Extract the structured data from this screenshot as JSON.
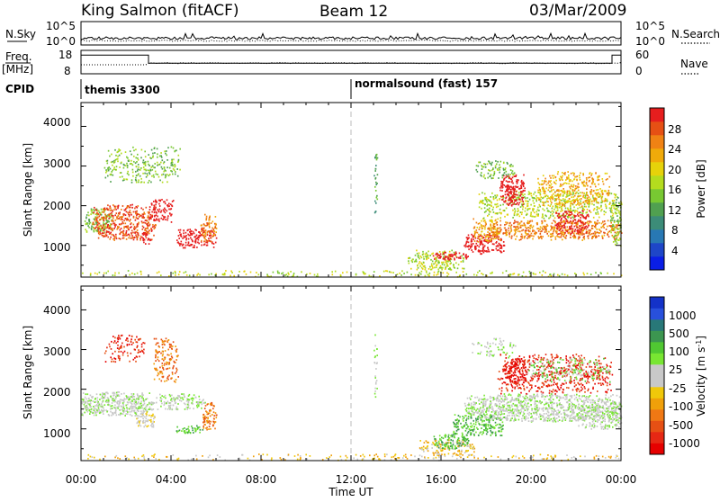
{
  "header": {
    "station": "King Salmon (fitACF)",
    "beam": "Beam 12",
    "date": "03/Mar/2009"
  },
  "summary": {
    "nsky_label": "N.Sky",
    "nsky_ticks": [
      "10^5",
      "10^0"
    ],
    "nsearch_label": "N.Search",
    "nsearch_ticks": [
      "10^5",
      "10^0"
    ],
    "freq_label": "Freq.",
    "freq_unit": "[MHz]",
    "freq_ticks": [
      "18",
      "8"
    ],
    "nave_label": "Nave",
    "nave_ticks": [
      "60",
      "0"
    ],
    "cpid_label": "CPID",
    "cpid_programs": [
      {
        "name": "themis 3300",
        "start_hour": 0
      },
      {
        "name": "normalsound (fast) 157",
        "start_hour": 12
      }
    ],
    "freq_segments": [
      {
        "start_hour": 0,
        "end_hour": 3,
        "freq_mhz": 16
      },
      {
        "start_hour": 3,
        "end_hour": 23.6,
        "freq_mhz": 12.5
      },
      {
        "start_hour": 23.6,
        "end_hour": 24,
        "freq_mhz": 16
      }
    ]
  },
  "chart_data": [
    {
      "type": "heatmap",
      "name": "power",
      "ylabel": "Slant Range [km]",
      "ylim": [
        200,
        4600
      ],
      "xlim_hours": [
        0,
        24
      ],
      "y_ticks": [
        "4000",
        "3000",
        "2000",
        "1000"
      ],
      "colorbar": {
        "label": "Power [dB]",
        "range": [
          0,
          32
        ],
        "ticks": [
          "28",
          "24",
          "20",
          "16",
          "12",
          "8",
          "4"
        ],
        "colors": [
          "#0a1ee6",
          "#1e46c8",
          "#2878b4",
          "#3c8c78",
          "#50a050",
          "#78c832",
          "#b4dc1e",
          "#e6d20a",
          "#f0aa0a",
          "#f08214",
          "#e65014",
          "#e61e1e"
        ]
      },
      "patches": [
        {
          "t0": 0.15,
          "t1": 1.4,
          "r0": 1350,
          "r1": 1950,
          "v": 5,
          "d": 0.6
        },
        {
          "t0": 0.5,
          "t1": 3.3,
          "r0": 1150,
          "r1": 2050,
          "v": 10,
          "d": 0.55
        },
        {
          "t0": 2.6,
          "t1": 3.1,
          "r0": 1050,
          "r1": 1350,
          "v": 27,
          "d": 0.6
        },
        {
          "t0": 3.0,
          "t1": 4.1,
          "r0": 1600,
          "r1": 2200,
          "v": 14,
          "d": 0.45
        },
        {
          "t0": 1.0,
          "t1": 4.4,
          "r0": 2600,
          "r1": 3500,
          "v": 5,
          "d": 0.28
        },
        {
          "t0": 4.2,
          "t1": 6.0,
          "r0": 950,
          "r1": 1450,
          "v": 12,
          "d": 0.5
        },
        {
          "t0": 5.3,
          "t1": 6.0,
          "r0": 1100,
          "r1": 1800,
          "v": 9,
          "d": 0.5
        },
        {
          "t0": 13.0,
          "t1": 13.15,
          "r0": 1700,
          "r1": 3500,
          "v": 4,
          "d": 0.35
        },
        {
          "t0": 14.5,
          "t1": 17.0,
          "r0": 400,
          "r1": 900,
          "v": 6,
          "d": 0.45
        },
        {
          "t0": 15.6,
          "t1": 17.2,
          "r0": 650,
          "r1": 850,
          "v": 13,
          "d": 0.6
        },
        {
          "t0": 17.0,
          "t1": 18.8,
          "r0": 800,
          "r1": 1300,
          "v": 22,
          "d": 0.6
        },
        {
          "t0": 17.4,
          "t1": 18.6,
          "r0": 1100,
          "r1": 1700,
          "v": 8,
          "d": 0.5
        },
        {
          "t0": 18.0,
          "t1": 24.0,
          "r0": 1150,
          "r1": 1650,
          "v": 9,
          "d": 0.6
        },
        {
          "t0": 17.6,
          "t1": 24.0,
          "r0": 1700,
          "r1": 2400,
          "v": 6,
          "d": 0.4
        },
        {
          "t0": 18.6,
          "t1": 19.7,
          "r0": 2000,
          "r1": 2800,
          "v": 18,
          "d": 0.6
        },
        {
          "t0": 18.9,
          "t1": 19.3,
          "r0": 2200,
          "r1": 2500,
          "v": 25,
          "d": 0.6
        },
        {
          "t0": 20.2,
          "t1": 23.5,
          "r0": 2000,
          "r1": 2900,
          "v": 8,
          "d": 0.4
        },
        {
          "t0": 21.0,
          "t1": 22.6,
          "r0": 1300,
          "r1": 1900,
          "v": 15,
          "d": 0.45
        },
        {
          "t0": 17.5,
          "t1": 19.3,
          "r0": 2700,
          "r1": 3150,
          "v": 5,
          "d": 0.35
        },
        {
          "t0": 0.0,
          "t1": 24.0,
          "r0": 220,
          "r1": 380,
          "v": 6,
          "d": 0.18
        },
        {
          "t0": 23.5,
          "t1": 24.0,
          "r0": 1000,
          "r1": 2300,
          "v": 5,
          "d": 0.5
        }
      ]
    },
    {
      "type": "heatmap",
      "name": "velocity",
      "ylabel": "Slant Range [km]",
      "xlabel": "Time UT",
      "ylim": [
        200,
        4600
      ],
      "xlim_hours": [
        0,
        24
      ],
      "y_ticks": [
        "4000",
        "3000",
        "2000",
        "1000"
      ],
      "x_ticks": [
        "00:00",
        "04:00",
        "08:00",
        "12:00",
        "16:00",
        "20:00",
        "00:00"
      ],
      "colorbar": {
        "label": "Velocity [m s",
        "label_sup": "-1",
        "label_end": "]",
        "ticks": [
          "1000",
          "500",
          "100",
          "25",
          "-25",
          "-100",
          "-500",
          "-1000"
        ],
        "colors": [
          "#1432c8",
          "#2850dc",
          "#287878",
          "#3c9650",
          "#50c832",
          "#78e632",
          "#c8c8c8",
          "#c8c8c8",
          "#f0c80a",
          "#f0a00a",
          "#f07814",
          "#e65014",
          "#e62814",
          "#e60000"
        ]
      },
      "patches": [
        {
          "t0": 0.0,
          "t1": 3.2,
          "r0": 1350,
          "r1": 1950,
          "v": 6,
          "d": 0.7
        },
        {
          "t0": 2.4,
          "t1": 3.3,
          "r0": 1050,
          "r1": 1450,
          "v": 7,
          "d": 0.6
        },
        {
          "t0": 3.2,
          "t1": 5.5,
          "r0": 1500,
          "r1": 1900,
          "v": 6,
          "d": 0.55
        },
        {
          "t0": 3.2,
          "t1": 4.3,
          "r0": 2200,
          "r1": 3300,
          "v": 10,
          "d": 0.4
        },
        {
          "t0": 1.0,
          "t1": 2.8,
          "r0": 2700,
          "r1": 3400,
          "v": 12,
          "d": 0.25
        },
        {
          "t0": 4.2,
          "t1": 5.4,
          "r0": 900,
          "r1": 1100,
          "v": 4,
          "d": 0.6
        },
        {
          "t0": 5.4,
          "t1": 6.0,
          "r0": 1000,
          "r1": 1700,
          "v": 10,
          "d": 0.55
        },
        {
          "t0": 0.0,
          "t1": 24.0,
          "r0": 220,
          "r1": 380,
          "v": 8,
          "d": 0.18
        },
        {
          "t0": 13.0,
          "t1": 13.15,
          "r0": 1700,
          "r1": 3500,
          "v": 6,
          "d": 0.3
        },
        {
          "t0": 15.0,
          "t1": 17.5,
          "r0": 350,
          "r1": 750,
          "v": 8,
          "d": 0.45
        },
        {
          "t0": 15.6,
          "t1": 17.2,
          "r0": 500,
          "r1": 900,
          "v": 4,
          "d": 0.55
        },
        {
          "t0": 16.5,
          "t1": 18.8,
          "r0": 850,
          "r1": 1400,
          "v": 4,
          "d": 0.55
        },
        {
          "t0": 17.0,
          "t1": 24.0,
          "r0": 1200,
          "r1": 1900,
          "v": 6,
          "d": 0.65
        },
        {
          "t0": 18.5,
          "t1": 23.6,
          "r0": 1900,
          "r1": 2900,
          "v": 12,
          "d": 0.35
        },
        {
          "t0": 18.8,
          "t1": 19.8,
          "r0": 2200,
          "r1": 2800,
          "v": 13,
          "d": 0.55
        },
        {
          "t0": 19.8,
          "t1": 23.5,
          "r0": 2200,
          "r1": 2800,
          "v": 5,
          "d": 0.3
        },
        {
          "t0": 22.0,
          "t1": 24.0,
          "r0": 1000,
          "r1": 1600,
          "v": 6,
          "d": 0.5
        },
        {
          "t0": 17.3,
          "t1": 19.3,
          "r0": 2800,
          "r1": 3300,
          "v": 6,
          "d": 0.2
        }
      ]
    }
  ]
}
